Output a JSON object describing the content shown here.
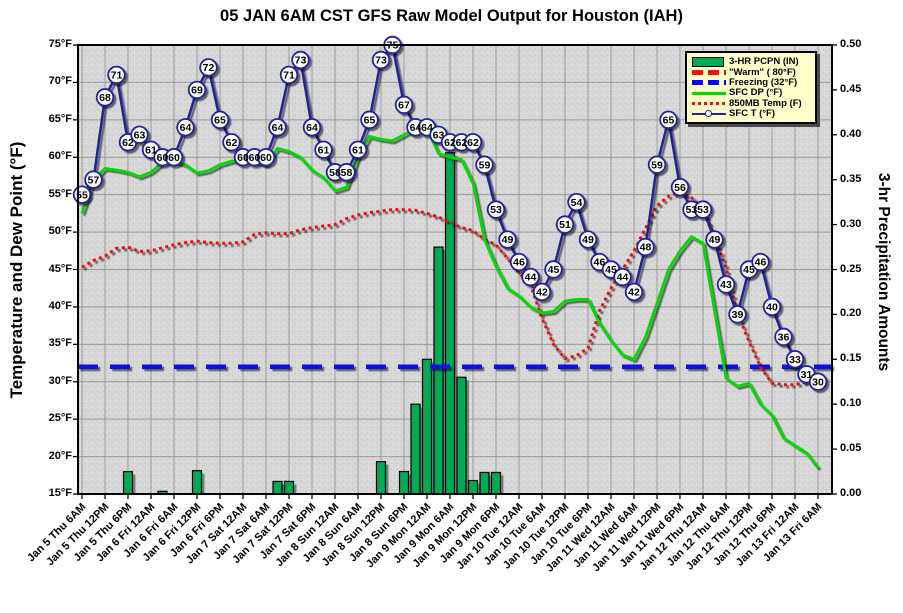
{
  "chart_data": {
    "type": "combo",
    "title": "05 JAN 6AM CST GFS Raw Model Output for Houston (IAH)",
    "time_step_hours": 3,
    "points_per_label_interval": 2,
    "x_labels": [
      "Jan 5 Thu 6AM",
      "Jan 5 Thu 12PM",
      "Jan 5 Thu 6PM",
      "Jan 6 Fri 12AM",
      "Jan 6 Fri 6AM",
      "Jan 6 Fri 12PM",
      "Jan 6 Fri 6PM",
      "Jan 7 Sat 12AM",
      "Jan 7 Sat 6AM",
      "Jan 7 Sat 12PM",
      "Jan 7 Sat 6PM",
      "Jan 8 Sun 12AM",
      "Jan 8 Sun 6AM",
      "Jan 8 Sun 12PM",
      "Jan 8 Sun 6PM",
      "Jan 9 Mon 12AM",
      "Jan 9 Mon 6AM",
      "Jan 9 Mon 12PM",
      "Jan 9 Mon 6PM",
      "Jan 10 Tue 12AM",
      "Jan 10 Tue 6AM",
      "Jan 10 Tue 12PM",
      "Jan 10 Tue 6PM",
      "Jan 11 Wed 12AM",
      "Jan 11 Wed 6AM",
      "Jan 11 Wed 12PM",
      "Jan 11 Wed 6PM",
      "Jan 12 Thu 12AM",
      "Jan 12 Thu 6AM",
      "Jan 12 Thu 12PM",
      "Jan 12 Thu 6PM",
      "Jan 13 Fri 12AM",
      "Jan 13 Fri 6AM"
    ],
    "left_axis": {
      "title": "Temperature and Dew Point (°F)",
      "min": 15,
      "max": 75,
      "step": 5,
      "suffix": "°F"
    },
    "right_axis": {
      "title": "3-hr Precipitation Amounts",
      "min": 0,
      "max": 0.5,
      "step": 0.05,
      "decimals": 2
    },
    "colors": {
      "pcpn": "#00AA55",
      "warm": "#EE1111",
      "freezing": "#0808EE",
      "dp": "#00DB00",
      "t850": "#EE1111",
      "sfc_t": "#22229E"
    },
    "grid_color": "#9C9C9C",
    "plot_bg": "#D7D7D7",
    "legend_bg": "#FFFFCC",
    "series": [
      {
        "key": "pcpn",
        "name": "3-HR PCPN (IN)",
        "type": "bar",
        "axis": "right",
        "values": [
          0,
          0,
          0,
          0,
          0.025,
          0,
          0,
          0.003,
          0,
          0,
          0.026,
          0,
          0,
          0,
          0,
          0,
          0,
          0.014,
          0.014,
          0,
          0,
          0,
          0,
          0,
          0,
          0,
          0.036,
          0,
          0.025,
          0.1,
          0.15,
          0.275,
          0.38,
          0.13,
          0.015,
          0.024,
          0.024,
          0,
          0,
          0,
          0,
          0,
          0,
          0,
          0,
          0,
          0,
          0,
          0,
          0,
          0,
          0,
          0,
          0,
          0,
          0,
          0,
          0,
          0,
          0,
          0,
          0,
          0,
          0,
          0
        ]
      },
      {
        "key": "warm",
        "name": "\"Warm\" ( 80°F)",
        "type": "hline",
        "axis": "left",
        "value": 80
      },
      {
        "key": "freezing",
        "name": "Freezing (32°F)",
        "type": "hline",
        "axis": "left",
        "value": 32
      },
      {
        "key": "dp",
        "name": "SFC DP (°F)",
        "type": "line",
        "axis": "left",
        "values": [
          52.5,
          57,
          58.5,
          58.3,
          58,
          57.4,
          58,
          59.3,
          59.4,
          59,
          57.9,
          58.2,
          59,
          59.5,
          59.5,
          59.4,
          59,
          61.2,
          60.8,
          60,
          58.3,
          57.3,
          55.5,
          56,
          60,
          62.8,
          62.4,
          62.2,
          63,
          63.8,
          63.8,
          60.5,
          60,
          59.7,
          56.5,
          49,
          45.4,
          42.5,
          41.5,
          40,
          39.2,
          39.4,
          40.8,
          41,
          41,
          37.8,
          35.5,
          33.6,
          33,
          36,
          40.5,
          45,
          47.5,
          49.4,
          48.5,
          39.5,
          30.5,
          29.4,
          29.8,
          27,
          25.5,
          22.5,
          21.5,
          20.5,
          18.5
        ]
      },
      {
        "key": "t850",
        "name": "850MB Temp (F)",
        "type": "dotted-line",
        "axis": "left",
        "values": [
          45.3,
          46.2,
          46.8,
          47.8,
          48,
          47.4,
          47.5,
          47.9,
          48.3,
          48.6,
          48.8,
          48.6,
          48.5,
          48.5,
          48.7,
          49.7,
          49.9,
          49.8,
          49.8,
          50.3,
          50.6,
          50.8,
          51,
          51.8,
          52.3,
          52.6,
          52.8,
          53,
          53,
          52.9,
          52.5,
          52,
          51.3,
          50.6,
          50.2,
          49,
          48.3,
          46.5,
          44.5,
          43,
          38.5,
          35,
          33.1,
          33.5,
          34.5,
          39.5,
          42.5,
          45,
          47.5,
          50.5,
          53.5,
          54.8,
          55.3,
          54.6,
          53.3,
          49.5,
          45.3,
          39.2,
          35.4,
          32,
          29.8,
          29.6,
          29.6,
          30,
          30.7
        ]
      },
      {
        "key": "sfc_t",
        "name": "SFC T (°F)",
        "type": "line-with-labeled-markers",
        "axis": "left",
        "values": [
          55,
          57,
          68,
          71,
          62,
          63,
          61,
          60,
          60,
          64,
          69,
          72,
          65,
          62,
          60,
          60,
          60,
          64,
          71,
          73,
          64,
          61,
          58,
          58,
          61,
          65,
          73,
          75,
          67,
          64,
          64,
          63,
          62,
          62,
          62,
          59,
          53,
          49,
          46,
          44,
          42,
          45,
          51,
          54,
          49,
          46,
          45,
          44,
          42,
          48,
          59,
          65,
          56,
          53,
          53,
          49,
          43,
          39,
          45,
          46,
          40,
          36,
          33,
          31,
          30
        ]
      }
    ]
  }
}
